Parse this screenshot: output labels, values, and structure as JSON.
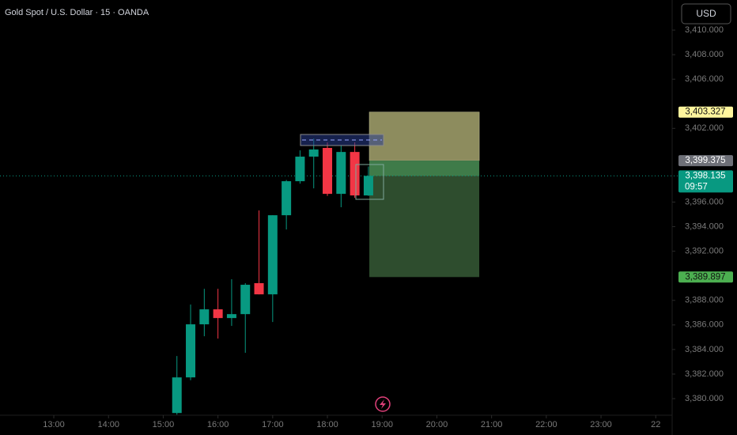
{
  "chart_data": {
    "type": "candlestick",
    "title": "Gold Spot / U.S. Dollar · 15 · OANDA",
    "currency": "USD",
    "x": [
      15.25,
      15.5,
      15.75,
      16,
      16.25,
      16.5,
      16.75,
      17,
      17.25,
      17.5,
      17.75,
      18,
      18.25,
      18.5,
      18.75
    ],
    "open": [
      3378.83,
      3381.73,
      3386.05,
      3387.27,
      3386.56,
      3386.88,
      3389.4,
      3388.49,
      3394.93,
      3397.7,
      3399.7,
      3400.41,
      3396.67,
      3400.08,
      3396.54
    ],
    "high": [
      3383.47,
      3387.66,
      3388.94,
      3388.94,
      3389.72,
      3389.4,
      3395.32,
      3394.93,
      3397.8,
      3400.21,
      3401.18,
      3400.86,
      3400.6,
      3400.86,
      3398.9
    ],
    "low": [
      3378.7,
      3381.5,
      3385.08,
      3384.89,
      3385.92,
      3383.73,
      3388.49,
      3386.24,
      3393.77,
      3397.5,
      3397.12,
      3396.5,
      3395.58,
      3396.35,
      3396.5
    ],
    "close": [
      3381.73,
      3386.05,
      3387.27,
      3386.56,
      3386.88,
      3389.27,
      3388.49,
      3394.93,
      3397.7,
      3399.7,
      3400.28,
      3396.67,
      3400.08,
      3396.54,
      3398.135
    ],
    "up_color": "#089981",
    "down_color": "#f23645",
    "xlim": [
      12.017,
      24.3
    ],
    "xticks": [
      {
        "value": 13,
        "label": "13:00"
      },
      {
        "value": 14,
        "label": "14:00"
      },
      {
        "value": 15,
        "label": "15:00"
      },
      {
        "value": 16,
        "label": "16:00"
      },
      {
        "value": 17,
        "label": "17:00"
      },
      {
        "value": 18,
        "label": "18:00"
      },
      {
        "value": 19,
        "label": "19:00"
      },
      {
        "value": 20,
        "label": "20:00"
      },
      {
        "value": 21,
        "label": "21:00"
      },
      {
        "value": 22,
        "label": "22:00"
      },
      {
        "value": 23,
        "label": "23:00"
      },
      {
        "value": 24,
        "label": "22"
      }
    ],
    "ylim": [
      3378.65,
      3412.45
    ],
    "yticks": [
      {
        "value": 3410,
        "label": "3,410.000"
      },
      {
        "value": 3408,
        "label": "3,408.000"
      },
      {
        "value": 3406,
        "label": "3,406.000"
      },
      {
        "value": 3402,
        "label": "3,402.000"
      },
      {
        "value": 3396,
        "label": "3,396.000"
      },
      {
        "value": 3394,
        "label": "3,394.000"
      },
      {
        "value": 3392,
        "label": "3,392.000"
      },
      {
        "value": 3388,
        "label": "3,388.000"
      },
      {
        "value": 3386,
        "label": "3,386.000"
      },
      {
        "value": 3384,
        "label": "3,384.000"
      },
      {
        "value": 3382,
        "label": "3,382.000"
      },
      {
        "value": 3380,
        "label": "3,380.000"
      }
    ],
    "position": {
      "start": 18.766,
      "end": 20.775,
      "upper": {
        "value": 3403.327,
        "label": "3,403.327"
      },
      "entry": {
        "value": 3399.375,
        "label": "3,399.375"
      },
      "lower": {
        "value": 3389.897,
        "label": "3,389.897"
      }
    },
    "current": {
      "value": 3398.135,
      "label": "3,398.135",
      "countdown": "09:57"
    }
  }
}
